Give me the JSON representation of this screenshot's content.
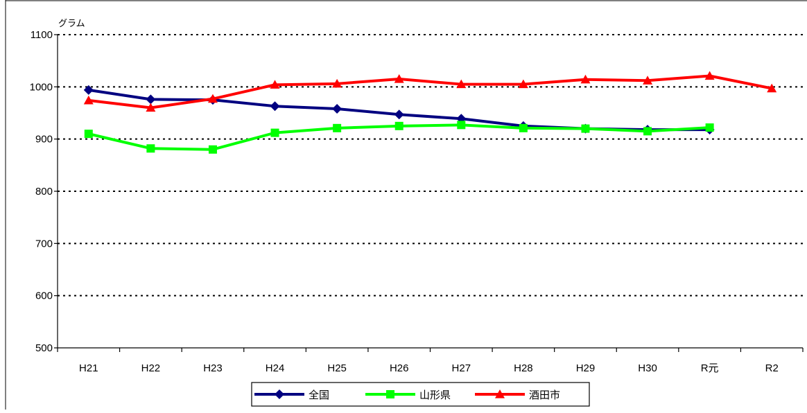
{
  "chart_data": {
    "type": "line",
    "title": "",
    "xlabel": "",
    "ylabel": "グラム",
    "categories": [
      "H21",
      "H22",
      "H23",
      "H24",
      "H25",
      "H26",
      "H27",
      "H28",
      "H29",
      "H30",
      "R元",
      "R2"
    ],
    "ylim": [
      500,
      1100
    ],
    "yticks": [
      500,
      600,
      700,
      800,
      900,
      1000,
      1100
    ],
    "grid": true,
    "legend_position": "bottom",
    "series": [
      {
        "name": "全国",
        "color": "#000080",
        "marker": "diamond",
        "values": [
          994,
          976,
          975,
          963,
          958,
          947,
          939,
          925,
          920,
          918,
          918,
          null
        ]
      },
      {
        "name": "山形県",
        "color": "#00ff00",
        "marker": "square",
        "values": [
          910,
          882,
          880,
          912,
          921,
          925,
          927,
          921,
          920,
          915,
          922,
          null
        ]
      },
      {
        "name": "酒田市",
        "color": "#ff0000",
        "marker": "triangle",
        "values": [
          974,
          960,
          977,
          1004,
          1006,
          1015,
          1005,
          1005,
          1014,
          1012,
          1021,
          997
        ]
      }
    ]
  }
}
